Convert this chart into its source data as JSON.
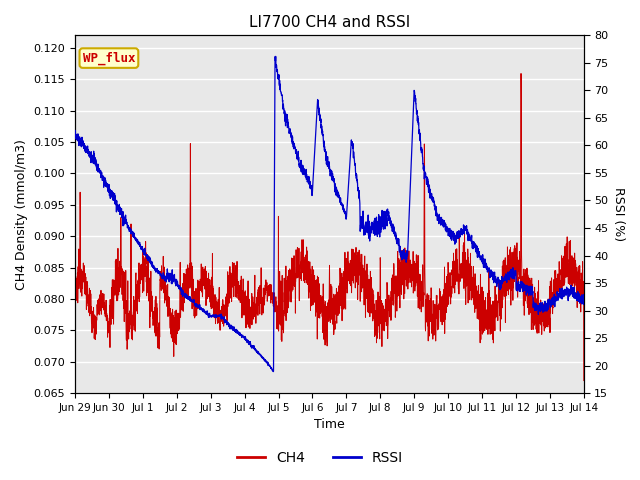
{
  "title": "LI7700 CH4 and RSSI",
  "xlabel": "Time",
  "ylabel_left": "CH4 Density (mmol/m3)",
  "ylabel_right": "RSSI (%)",
  "site_label": "WP_flux",
  "ylim_left": [
    0.065,
    0.122
  ],
  "ylim_right": [
    15,
    80
  ],
  "yticks_left": [
    0.065,
    0.07,
    0.075,
    0.08,
    0.085,
    0.09,
    0.095,
    0.1,
    0.105,
    0.11,
    0.115,
    0.12
  ],
  "yticks_right": [
    15,
    20,
    25,
    30,
    35,
    40,
    45,
    50,
    55,
    60,
    65,
    70,
    75,
    80
  ],
  "xtick_labels": [
    "Jun 29",
    "Jun 30",
    "Jul 1",
    "Jul 2",
    "Jul 3",
    "Jul 4",
    "Jul 5",
    "Jul 6",
    "Jul 7",
    "Jul 8",
    "Jul 9",
    "Jul 10",
    "Jul 11",
    "Jul 12",
    "Jul 13",
    "Jul 14"
  ],
  "color_ch4": "#cc0000",
  "color_rssi": "#0000cc",
  "fig_facecolor": "#ffffff",
  "plot_facecolor": "#e8e8e8",
  "grid_color": "#ffffff",
  "legend_labels": [
    "CH4",
    "RSSI"
  ]
}
